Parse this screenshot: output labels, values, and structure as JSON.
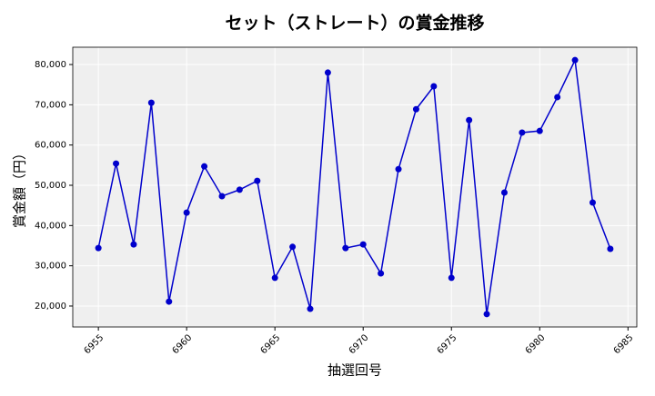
{
  "chart_data": {
    "type": "line",
    "title": "セット（ストレート）の賞金推移",
    "xlabel": "抽選回号",
    "ylabel": "賞金額（円）",
    "x": [
      6955,
      6956,
      6957,
      6958,
      6959,
      6960,
      6961,
      6962,
      6963,
      6964,
      6965,
      6966,
      6967,
      6968,
      6969,
      6970,
      6971,
      6972,
      6973,
      6974,
      6975,
      6976,
      6977,
      6978,
      6979,
      6980,
      6981,
      6982,
      6983,
      6984
    ],
    "series": [
      {
        "color": "#0000cc",
        "values": [
          34400,
          55400,
          35300,
          70500,
          21100,
          43200,
          54700,
          47300,
          48900,
          51100,
          27000,
          34700,
          19300,
          78000,
          34400,
          35300,
          28100,
          54000,
          68900,
          74600,
          27000,
          66200,
          18000,
          48200,
          63100,
          63500,
          71900,
          81100,
          45700,
          34200
        ]
      }
    ],
    "xlim": [
      6953.55,
      6985.5
    ],
    "xticks": [
      6955,
      6960,
      6965,
      6970,
      6975,
      6980,
      6985
    ],
    "ylim": [
      14800,
      84300
    ],
    "yticks": [
      {
        "value": 20000,
        "label": "20,000"
      },
      {
        "value": 30000,
        "label": "30,000"
      },
      {
        "value": 40000,
        "label": "40,000"
      },
      {
        "value": 50000,
        "label": "50,000"
      },
      {
        "value": 60000,
        "label": "60,000"
      },
      {
        "value": 70000,
        "label": "70,000"
      },
      {
        "value": 80000,
        "label": "80,000"
      }
    ],
    "grid": true
  }
}
